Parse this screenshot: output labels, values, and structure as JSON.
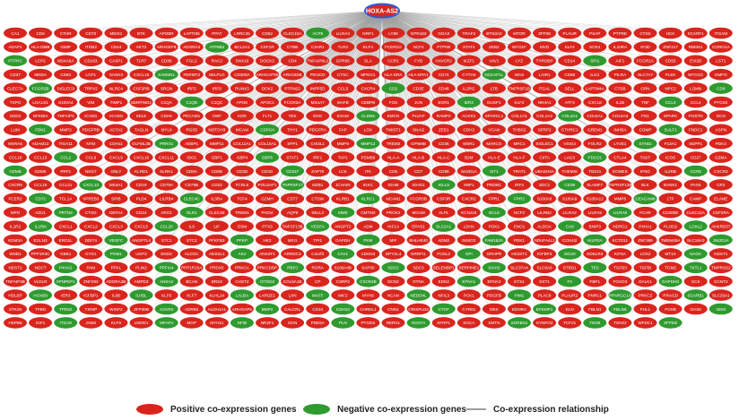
{
  "network": {
    "hub_label": "HOXA-AS2",
    "positive_color": "#d9251d",
    "negative_color": "#2f9a2f",
    "edge_color": "#9e9e9e",
    "hub_border_color": "#2a5bd7",
    "node_labels": [
      "CA1",
      "CD6",
      "CTHR",
      "CD70",
      "MEIS1",
      "BTK",
      "APOBR",
      "LAPTM5",
      "PPAT",
      "LRRC25",
      "CD52",
      "CLEC10A",
      "ACP5",
      "LILRA4",
      "NRP1",
      "LY86",
      "GPR183",
      "GGA3",
      "TRAF3",
      "BTN3A2",
      "MTOR",
      "ZFP36",
      "PLAUR",
      "PSAP",
      "PTPRE",
      "CTSS",
      "HCK",
      "SCARF1",
      "ITGAM",
      "ADAP2",
      "HLA-DMB",
      "GMIP",
      "ITGB2",
      "CD44",
      "AKT3",
      "ARHGEF6",
      "ADORA3",
      "ATP8B2",
      "BCL2A1",
      "CSF1R",
      "CYBB",
      "C3AR1",
      "TLR2",
      "ELF4",
      "FCER1G",
      "NCF4",
      "PTPN6",
      "STAT4",
      "ZEB2",
      "MYO1F",
      "MVD",
      "KLF4",
      "SOX4",
      "IL10RA",
      "IFI30",
      "ZNF217",
      "RBMS1",
      "CORO1A",
      "PTPRC",
      "LCP2",
      "MS4A6A",
      "CD163",
      "CASP1",
      "TLR7",
      "CD86",
      "FGL2",
      "RAC2",
      "SNX10",
      "DOCK2",
      "CD4",
      "TNFAIP8L2",
      "GPR65",
      "SLA",
      "CCR1",
      "FYB",
      "HAVCR2",
      "IKZF1",
      "VAV1",
      "LYZ",
      "TYROBP",
      "CD14",
      "SPI1",
      "AIF1",
      "FCGR1A",
      "CD53",
      "EVI2B",
      "LST1",
      "CD37",
      "MNDA",
      "CD84",
      "LCP1",
      "SASH3",
      "CXCL16",
      "SAMSN1",
      "FERMT3",
      "SELPLG",
      "CD300A",
      "ARHGAP30",
      "ARHGDIB",
      "PIK3CD",
      "CTSC",
      "MPEG1",
      "HLA-DRA",
      "HLA-DPA1",
      "CD74",
      "CYTH4",
      "NCKAP1L",
      "WAS",
      "LAIR1",
      "CD68",
      "IL4I1",
      "PILRA",
      "SLC7A7",
      "PLEK",
      "MYO1G",
      "GMFG",
      "CLEC7A",
      "FCGR2B",
      "SIGLEC9",
      "TRPV2",
      "NLRC4",
      "CSF2RB",
      "SRGN",
      "IRF5",
      "IRF8",
      "RUNX3",
      "DOK2",
      "PTPN22",
      "INPP5D",
      "CCL5",
      "CXCR4",
      "CD2",
      "CD3E",
      "CD48",
      "IL2RG",
      "LTB",
      "TNFRSF1B",
      "ITGAL",
      "SELL",
      "LAPTM4A",
      "CTSB",
      "GRN",
      "NPC2",
      "LGMN",
      "CD9",
      "TSPO",
      "LGALS1",
      "S100A4",
      "VIM",
      "TIMP1",
      "SERPING1",
      "C1QA",
      "C1QB",
      "C1QC",
      "APOE",
      "APOC1",
      "FCGR3A",
      "MS4A7",
      "MAFB",
      "CEBPB",
      "FOS",
      "JUN",
      "EGR1",
      "IER2",
      "DUSP1",
      "KLF2",
      "NR4A1",
      "ATF3",
      "CXCL8",
      "IL1B",
      "TNF",
      "CCL3",
      "CCL4",
      "PTGS2",
      "SOD2",
      "NFKBIA",
      "TNFAIP3",
      "ICAM1",
      "VCAM1",
      "SELE",
      "CDH5",
      "PECAM1",
      "VWF",
      "KDR",
      "FLT1",
      "TEK",
      "ENG",
      "ESAM",
      "CLDN5",
      "EMCN",
      "PLVAP",
      "RAMP2",
      "ACKR1",
      "SPARCL1",
      "COL1A1",
      "COL1A2",
      "COL3A1",
      "COL5A1",
      "COL6A3",
      "FN1",
      "SPARC",
      "POSTN",
      "DCN",
      "LUM",
      "FBN1",
      "MMP2",
      "PDGFRB",
      "ACTA2",
      "TAGLN",
      "MYL9",
      "RGS5",
      "NOTCH3",
      "MCAM",
      "CSPG4",
      "THY1",
      "PDGFRA",
      "FAP",
      "LOX",
      "TWIST1",
      "SNAI2",
      "ZEB1",
      "CDH2",
      "VCAN",
      "THBS2",
      "SFRP2",
      "CTHRC1",
      "GREM1",
      "INHBA",
      "COMP",
      "SULF1",
      "FNDC1",
      "ASPN",
      "MXRA5",
      "ADAM12",
      "ITGA11",
      "NTM",
      "CDH11",
      "OLFML2B",
      "PRRX1",
      "AEBP1",
      "MMP11",
      "COL11A1",
      "COL10A1",
      "SPP1",
      "CHI3L1",
      "MMP9",
      "MMP12",
      "TREM2",
      "GPNMB",
      "CD36",
      "MSR1",
      "MARCO",
      "MRC1",
      "SIGLEC1",
      "VSIG4",
      "FOLR2",
      "LYVE1",
      "STAB1",
      "F13A1",
      "SEPP1",
      "PDK4",
      "CCL18",
      "CCL13",
      "CCL2",
      "CCL8",
      "CXCL9",
      "CXCL10",
      "CXCL11",
      "IDO1",
      "GBP1",
      "GBP4",
      "GBP5",
      "STAT1",
      "IRF1",
      "TAP1",
      "PSMB9",
      "HLA-A",
      "HLA-B",
      "HLA-C",
      "B2M",
      "HLA-E",
      "HLA-F",
      "CIITA",
      "LAG3",
      "PDCD1",
      "CTLA4",
      "TIGIT",
      "ICOS",
      "CD27",
      "GZMA",
      "GZMB",
      "GZMK",
      "PRF1",
      "NKG7",
      "GNLY",
      "KLRD1",
      "KLRK1",
      "CD8A",
      "CD8B",
      "CD3D",
      "CD3G",
      "CD247",
      "ZAP70",
      "LCK",
      "ITK",
      "CD5",
      "CD7",
      "CD96",
      "SH2D1A",
      "SIT1",
      "TRAT1",
      "UBASH3A",
      "THEMIS",
      "TBX21",
      "EOMES",
      "IFNG",
      "IL2RB",
      "CCR5",
      "CXCR3",
      "CXCR6",
      "CCL19",
      "CCL21",
      "CXCL13",
      "MS4A1",
      "CD19",
      "CD79A",
      "CD79B",
      "CD22",
      "FCRL5",
      "POU2AF1",
      "TNFRSF17",
      "MZB1",
      "JCHAIN",
      "IGKC",
      "IGHM",
      "IGHG1",
      "IGLL5",
      "XBP1",
      "PRDM1",
      "IRF4",
      "SDC1",
      "CD38",
      "SLAMF7",
      "TNFRSF13B",
      "BLK",
      "BANK1",
      "PAX5",
      "CR2",
      "FCER2",
      "CD72",
      "TCL1A",
      "VPREB3",
      "SPIB",
      "PLD4",
      "LILRB4",
      "CLEC4C",
      "IL3RA",
      "TCF4",
      "GZMH",
      "CST7",
      "CTSW",
      "KLRB1",
      "KLRC1",
      "NCAM1",
      "FCGR3B",
      "CSF3R",
      "CXCR2",
      "FPR1",
      "FPR2",
      "S100A8",
      "S100A9",
      "S100A12",
      "MMP8",
      "CEACAM8",
      "LTF",
      "CAMP",
      "ELANE",
      "MPO",
      "AZU1",
      "PRTN3",
      "CTSG",
      "DEFA4",
      "CD24",
      "ARG1",
      "OLR1",
      "CLEC4E",
      "TREM1",
      "PADI4",
      "AQP9",
      "SELL2",
      "MME",
      "CMTM2",
      "PROK2",
      "MGAM",
      "ALPL",
      "KCNJ15",
      "BCL6",
      "NCF2",
      "LILRB2",
      "LILRA2",
      "LILRA5",
      "LILRA6",
      "FCAR",
      "CD300E",
      "CLEC12A",
      "CSF2RA",
      "IL1R2",
      "IL1RN",
      "CXCL1",
      "CXCL2",
      "CXCL3",
      "CXCL5",
      "CCL20",
      "IL6",
      "LIF",
      "OSM",
      "PTX3",
      "TNFSF13B",
      "VEGFA",
      "ANGPT2",
      "ADM",
      "HIF1A",
      "EPAS1",
      "SLC2A1",
      "LDHA",
      "PGK1",
      "ENO1",
      "ALDOA",
      "CA9",
      "BNIP3",
      "NDRG1",
      "P4HA1",
      "PLOD2",
      "LOXL2",
      "ANKRD37",
      "KDM3A",
      "EGLN3",
      "ERO1L",
      "DDIT4",
      "VEGFC",
      "ANGPTL4",
      "STC1",
      "STC2",
      "PFKFB3",
      "PFKP",
      "HK2",
      "MXI1",
      "TPI1",
      "GAPDH",
      "PKM",
      "MIF",
      "BHLHE40",
      "ADM2",
      "INSIG2",
      "FAM162A",
      "PDK1",
      "NDUFA4L2",
      "COX4I2",
      "HILPDA",
      "KCTD11",
      "ZNF395",
      "TMEM45A",
      "SLC16A3",
      "JMJD1A",
      "WSB1",
      "PPP1R3C",
      "GBE1",
      "GYS1",
      "PGM1",
      "UGP2",
      "ENO2",
      "ALDOC",
      "ADSSL1",
      "AK4",
      "ANKZF1",
      "ARRDC3",
      "C4orf3",
      "CAV1",
      "CDKN3",
      "DPYSL4",
      "ERRFI1",
      "FOSL2",
      "GPI",
      "GRHPR",
      "HS3ST1",
      "IGFBP3",
      "ISG20",
      "KDELR3",
      "KIF5A",
      "LOX2",
      "MT1X",
      "NAGK",
      "NDST1",
      "NDST2",
      "NOCT",
      "P4HA2",
      "PAM",
      "PFKL",
      "PLIN2",
      "PPFIA4",
      "PPP1R15A",
      "PRDX5",
      "PRKCA",
      "PRKCDBP",
      "RBPJ",
      "RORA",
      "S100A4B",
      "SAP30",
      "SDC2",
      "SDC3",
      "SELENBP1",
      "SERPINE1",
      "SIAH2",
      "SLC37A4",
      "SLC6A6",
      "STBD1",
      "TES",
      "TGFB3",
      "TGFBI",
      "TGM2",
      "TKTL1",
      "TMPRSS2",
      "TNFAIP3B",
      "VLDLR",
      "XPNPEP1",
      "ZNF292",
      "ADORA2B",
      "AMPD3",
      "ANXA2",
      "BCAN",
      "BRS3",
      "CHST2",
      "CITED2",
      "COL5A1B",
      "CP",
      "CSRP2",
      "CXCR4B",
      "DCN2",
      "DTNA",
      "EDN2",
      "EFNA1",
      "EFNA3",
      "ETS1",
      "EXT1",
      "F3",
      "FBP1",
      "FOXO3",
      "GALK1",
      "GAPDHS",
      "GCK",
      "GCNT2",
      "HDLBP",
      "HOXB9",
      "IER3",
      "IGFBP1",
      "IL6B",
      "ILVBL",
      "KLF6",
      "KLF7",
      "KLHL24",
      "LALBA",
      "LARGE1",
      "LXN",
      "MAFF",
      "MIF2",
      "MYH9",
      "NCAN",
      "NEDD4L",
      "NFIL3",
      "PCK1",
      "PDGFB",
      "PIM1",
      "PLAC8",
      "PLAUR2",
      "PNRC1",
      "PPARGC1A",
      "PRKCZ",
      "RRAGD",
      "SCARB1",
      "SLC25A1",
      "STK25",
      "TPBG",
      "TPD52",
      "TXNIP",
      "WISP2",
      "ZFP36B",
      "ACKR3",
      "ADRB2",
      "ALDH1A1",
      "ARHGAP5",
      "BMP2",
      "CALCRL",
      "CD34",
      "CDH13",
      "CHRDL1",
      "CNN1",
      "CRISPLD2",
      "CTGF",
      "CYR61",
      "DES",
      "EDNRA",
      "EFEMP1",
      "ELN",
      "FBLN1",
      "FBLN5",
      "FHL1",
      "FOSB",
      "GAS6",
      "GEM",
      "HSPB6",
      "IGF1",
      "ITGA8",
      "JAM2",
      "KLF9",
      "LMOD1",
      "MFAP4",
      "MGP",
      "MYH11",
      "NFIB",
      "NR2F1",
      "OGN",
      "PDE5A",
      "PLN",
      "PTGDS",
      "RERGL",
      "SCN7A",
      "SFRP1",
      "SGCA",
      "SMTN",
      "SORBS1",
      "SYNPO2",
      "TCF21",
      "TNXB",
      "TSHZ2",
      "WFDC1",
      "ZFPM2"
    ],
    "negative_rank": [
      12,
      37,
      58,
      81,
      93,
      106,
      117,
      131,
      144,
      152,
      163,
      171,
      188,
      196,
      204,
      213,
      229,
      238,
      246,
      257,
      263,
      271,
      284,
      290,
      301,
      309,
      317,
      322,
      330,
      336,
      341,
      349,
      355,
      362,
      368,
      373,
      379,
      384,
      390,
      396,
      401,
      407,
      412,
      418,
      423,
      428,
      433,
      439,
      444,
      449,
      454,
      458,
      463,
      468,
      473,
      477,
      482,
      486,
      491,
      495,
      499,
      504,
      508,
      512,
      516,
      520,
      524,
      528,
      532,
      536,
      540,
      544,
      548,
      552,
      556,
      560,
      563,
      567,
      571,
      575,
      578,
      582,
      586,
      590,
      593,
      597,
      601,
      604,
      608,
      611,
      615,
      618,
      622,
      625,
      629,
      632,
      635,
      639,
      642,
      645,
      649,
      652,
      655,
      659,
      662,
      665,
      668,
      672,
      675,
      678,
      681,
      684,
      687,
      691,
      694,
      697,
      700,
      703,
      706,
      709,
      712,
      715,
      718,
      721,
      724,
      727,
      730,
      733,
      736,
      739,
      742,
      745,
      748,
      751,
      754,
      757,
      760,
      763,
      765,
      768,
      771,
      774,
      777,
      780,
      782,
      785,
      788,
      791,
      794,
      796,
      799,
      802,
      805,
      807,
      810,
      813,
      815,
      818,
      821,
      824,
      826,
      829,
      832,
      834,
      837,
      840,
      842,
      845,
      848,
      850,
      853,
      856,
      858,
      861,
      863,
      866,
      869,
      871,
      874,
      876,
      879,
      882,
      884,
      887,
      889,
      892,
      894,
      897,
      899,
      902,
      904,
      907,
      909,
      912,
      914,
      917,
      919,
      922,
      924,
      927,
      929,
      932,
      934,
      937,
      939,
      942,
      944,
      946,
      949,
      951,
      954,
      956,
      959,
      961,
      963,
      966,
      968,
      970,
      973,
      975,
      977,
      980,
      982,
      984,
      987,
      989,
      991,
      994,
      996,
      998
    ]
  },
  "legend": {
    "positive_label": "Positive co-expression genes",
    "negative_label": "Negative co-expression genes",
    "edge_label": "Co-expression relationship"
  }
}
